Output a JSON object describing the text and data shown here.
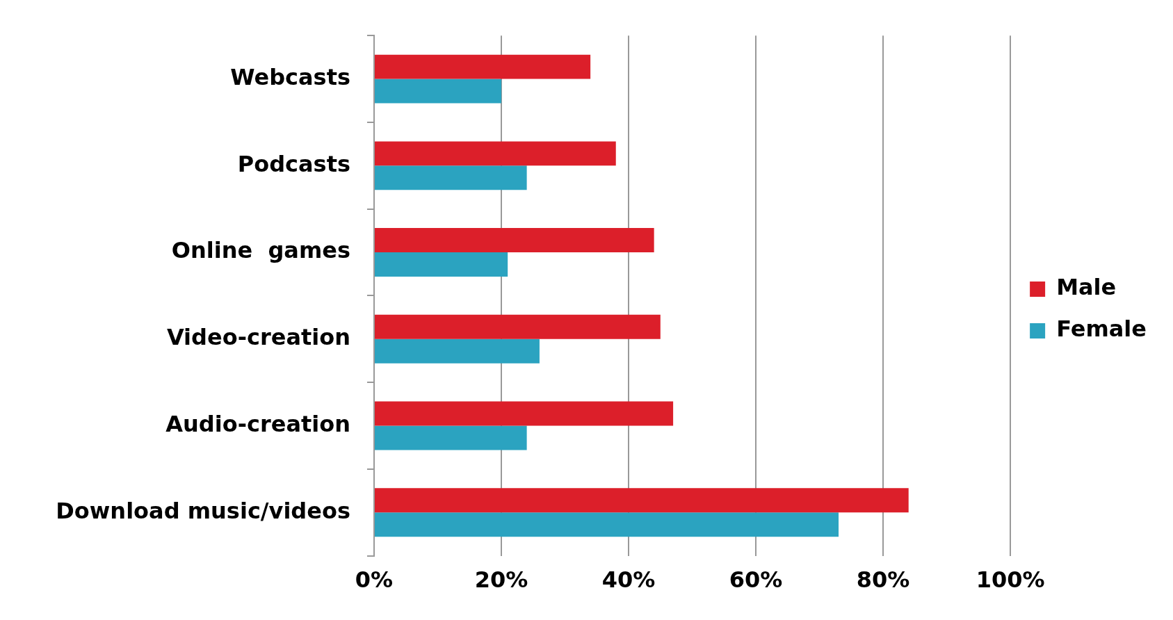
{
  "chart_data": {
    "type": "bar",
    "orientation": "horizontal",
    "categories": [
      "Webcasts",
      "Podcasts",
      "Online  games",
      "Video-creation",
      "Audio-creation",
      "Download music/videos"
    ],
    "series": [
      {
        "name": "Male",
        "color": "#dc1f2a",
        "values": [
          34,
          38,
          44,
          45,
          47,
          84
        ]
      },
      {
        "name": "Female",
        "color": "#2ba3c0",
        "values": [
          20,
          24,
          21,
          26,
          24,
          73
        ]
      }
    ],
    "xlim": [
      0,
      100
    ],
    "xticks": [
      {
        "value": 0,
        "label": "0%"
      },
      {
        "value": 20,
        "label": "20%"
      },
      {
        "value": 40,
        "label": "40%"
      },
      {
        "value": 60,
        "label": "60%"
      },
      {
        "value": 80,
        "label": "80%"
      },
      {
        "value": 100,
        "label": "100%"
      }
    ],
    "grid": "x",
    "legend": "right"
  }
}
